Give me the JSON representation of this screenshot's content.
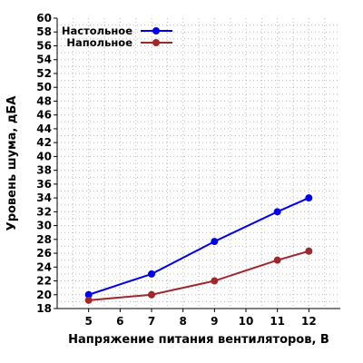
{
  "chart_data": {
    "type": "line",
    "xlabel": "Напряжение питания вентиляторов, В",
    "ylabel": "Уровень шума, дБА",
    "xlim": [
      4,
      13
    ],
    "ylim": [
      18,
      60
    ],
    "x_ticks": [
      5,
      6,
      7,
      8,
      9,
      10,
      11,
      12
    ],
    "y_ticks": [
      18,
      20,
      22,
      24,
      26,
      28,
      30,
      32,
      34,
      36,
      38,
      40,
      42,
      44,
      46,
      48,
      50,
      52,
      54,
      56,
      58,
      60
    ],
    "grid": true,
    "legend_position": "top-left",
    "series": [
      {
        "name": "Настольное",
        "color": "#0000ee",
        "x": [
          5,
          7,
          9,
          11,
          12
        ],
        "y": [
          20.0,
          23.0,
          27.7,
          32.0,
          34.0
        ]
      },
      {
        "name": "Напольное",
        "color": "#a0282c",
        "x": [
          5,
          7,
          9,
          11,
          12
        ],
        "y": [
          19.2,
          20.0,
          22.0,
          25.0,
          26.3
        ]
      }
    ]
  }
}
